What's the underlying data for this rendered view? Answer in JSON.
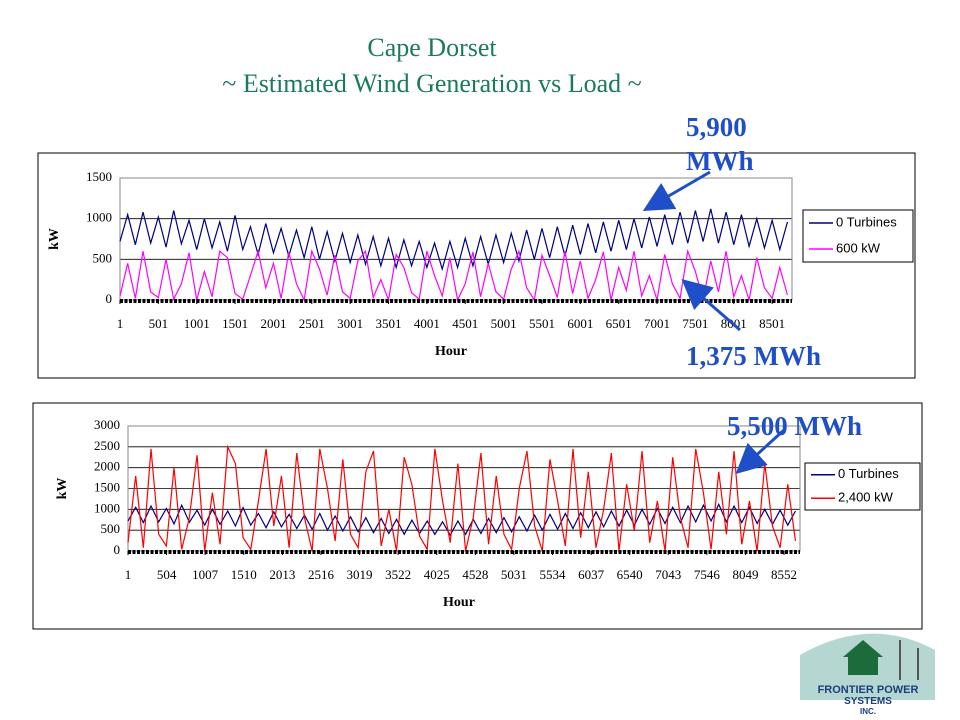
{
  "slide": {
    "title": [
      "Cape Dorset",
      "~ Estimated Wind Generation vs Load ~"
    ],
    "annotations": [
      "5,900 MWh",
      "1,375 MWh",
      "5,500 MWh"
    ],
    "logo": [
      "FRONTIER POWER",
      "SYSTEMS",
      "INC."
    ]
  },
  "chart_data": [
    {
      "type": "line",
      "xlabel": "Hour",
      "ylabel": "kW",
      "x": [
        1,
        101,
        201,
        301,
        401,
        501,
        601,
        701,
        801,
        901,
        1001,
        1101,
        1201,
        1301,
        1401,
        1501,
        1601,
        1701,
        1801,
        1901,
        2001,
        2101,
        2201,
        2301,
        2401,
        2501,
        2601,
        2701,
        2801,
        2901,
        3001,
        3101,
        3201,
        3301,
        3401,
        3501,
        3601,
        3701,
        3801,
        3901,
        4001,
        4101,
        4201,
        4301,
        4401,
        4501,
        4601,
        4701,
        4801,
        4901,
        5001,
        5101,
        5201,
        5301,
        5401,
        5501,
        5601,
        5701,
        5801,
        5901,
        6001,
        6101,
        6201,
        6301,
        6401,
        6501,
        6601,
        6701,
        6801,
        6901,
        7001,
        7101,
        7201,
        7301,
        7401,
        7501,
        7601,
        7701,
        7801,
        7901,
        8001,
        8101,
        8201,
        8301,
        8401,
        8501,
        8601,
        8701
      ],
      "xlim": [
        1,
        8760
      ],
      "xticks": [
        1,
        501,
        1001,
        1501,
        2001,
        2501,
        3001,
        3501,
        4001,
        4501,
        5001,
        5501,
        6001,
        6501,
        7001,
        7501,
        8001,
        8501
      ],
      "ylim": [
        0,
        1500
      ],
      "yticks": [
        0,
        500,
        1000,
        1500
      ],
      "grid": true,
      "series": [
        {
          "name": "0 Turbines",
          "color": "#000080",
          "values": [
            720,
            1050,
            680,
            1080,
            700,
            1020,
            650,
            1100,
            690,
            980,
            620,
            1000,
            640,
            960,
            600,
            1040,
            620,
            900,
            560,
            940,
            580,
            880,
            540,
            860,
            520,
            900,
            500,
            840,
            480,
            820,
            460,
            800,
            440,
            780,
            420,
            760,
            400,
            740,
            420,
            720,
            400,
            700,
            380,
            720,
            400,
            760,
            420,
            780,
            440,
            800,
            460,
            820,
            480,
            860,
            500,
            880,
            520,
            900,
            540,
            920,
            560,
            940,
            580,
            960,
            600,
            980,
            620,
            1000,
            640,
            1020,
            660,
            1050,
            680,
            1080,
            700,
            1100,
            720,
            1120,
            700,
            1080,
            680,
            1050,
            660,
            1000,
            640,
            980,
            620,
            960
          ]
        },
        {
          "name": "600 kW",
          "color": "#ff00ff",
          "values": [
            50,
            450,
            20,
            600,
            100,
            30,
            500,
            10,
            200,
            580,
            0,
            350,
            40,
            600,
            520,
            80,
            10,
            300,
            600,
            150,
            450,
            20,
            590,
            200,
            0,
            600,
            380,
            60,
            550,
            100,
            20,
            480,
            600,
            30,
            250,
            0,
            560,
            400,
            90,
            10,
            600,
            300,
            50,
            520,
            0,
            200,
            590,
            40,
            450,
            100,
            10,
            380,
            600,
            150,
            0,
            550,
            300,
            30,
            600,
            80,
            480,
            20,
            250,
            590,
            0,
            400,
            120,
            600,
            50,
            300,
            0,
            560,
            200,
            20,
            600,
            350,
            10,
            480,
            100,
            600,
            40,
            300,
            0,
            520,
            150,
            20,
            400,
            60
          ]
        }
      ]
    },
    {
      "type": "line",
      "xlabel": "Hour",
      "ylabel": "kW",
      "x": [
        1,
        101,
        201,
        301,
        401,
        501,
        601,
        701,
        801,
        901,
        1001,
        1101,
        1201,
        1301,
        1401,
        1501,
        1601,
        1701,
        1801,
        1901,
        2001,
        2101,
        2201,
        2301,
        2401,
        2501,
        2601,
        2701,
        2801,
        2901,
        3001,
        3101,
        3201,
        3301,
        3401,
        3501,
        3601,
        3701,
        3801,
        3901,
        4001,
        4101,
        4201,
        4301,
        4401,
        4501,
        4601,
        4701,
        4801,
        4901,
        5001,
        5101,
        5201,
        5301,
        5401,
        5501,
        5601,
        5701,
        5801,
        5901,
        6001,
        6101,
        6201,
        6301,
        6401,
        6501,
        6601,
        6701,
        6801,
        6901,
        7001,
        7101,
        7201,
        7301,
        7401,
        7501,
        7601,
        7701,
        7801,
        7901,
        8001,
        8101,
        8201,
        8301,
        8401,
        8501,
        8601,
        8701
      ],
      "xlim": [
        1,
        8760
      ],
      "xticks": [
        1,
        504,
        1007,
        1510,
        2013,
        2516,
        3019,
        3522,
        4025,
        4528,
        5031,
        5534,
        6037,
        6540,
        7043,
        7546,
        8049,
        8552
      ],
      "ylim": [
        0,
        3000
      ],
      "yticks": [
        0,
        500,
        1000,
        1500,
        2000,
        2500,
        3000
      ],
      "grid": true,
      "series": [
        {
          "name": "0 Turbines",
          "color": "#000080",
          "values": [
            720,
            1050,
            680,
            1080,
            700,
            1020,
            650,
            1100,
            690,
            980,
            620,
            1000,
            640,
            960,
            600,
            1040,
            620,
            900,
            560,
            940,
            580,
            880,
            540,
            860,
            520,
            900,
            500,
            840,
            480,
            820,
            460,
            800,
            440,
            780,
            420,
            760,
            400,
            740,
            420,
            720,
            400,
            700,
            380,
            720,
            400,
            760,
            420,
            780,
            440,
            800,
            460,
            820,
            480,
            860,
            500,
            880,
            520,
            900,
            540,
            920,
            560,
            940,
            580,
            960,
            600,
            980,
            620,
            1000,
            640,
            1020,
            660,
            1050,
            680,
            1080,
            700,
            1100,
            720,
            1120,
            700,
            1080,
            680,
            1050,
            660,
            1000,
            640,
            980,
            620,
            960
          ]
        },
        {
          "name": "2,400 kW",
          "color": "#ff0000",
          "values": [
            200,
            1800,
            80,
            2450,
            400,
            120,
            2000,
            40,
            800,
            2300,
            0,
            1400,
            160,
            2500,
            2100,
            320,
            40,
            1200,
            2450,
            600,
            1800,
            80,
            2350,
            800,
            0,
            2450,
            1500,
            240,
            2200,
            400,
            80,
            1900,
            2400,
            120,
            1000,
            0,
            2250,
            1600,
            360,
            40,
            2450,
            1200,
            200,
            2100,
            0,
            800,
            2350,
            160,
            1800,
            400,
            40,
            1500,
            2400,
            600,
            0,
            2200,
            1200,
            120,
            2450,
            320,
            1900,
            80,
            1000,
            2350,
            0,
            1600,
            480,
            2400,
            200,
            1200,
            0,
            2250,
            800,
            80,
            2450,
            1400,
            40,
            1900,
            400,
            2400,
            160,
            1200,
            0,
            2100,
            600,
            80,
            1600,
            240
          ]
        }
      ]
    }
  ]
}
